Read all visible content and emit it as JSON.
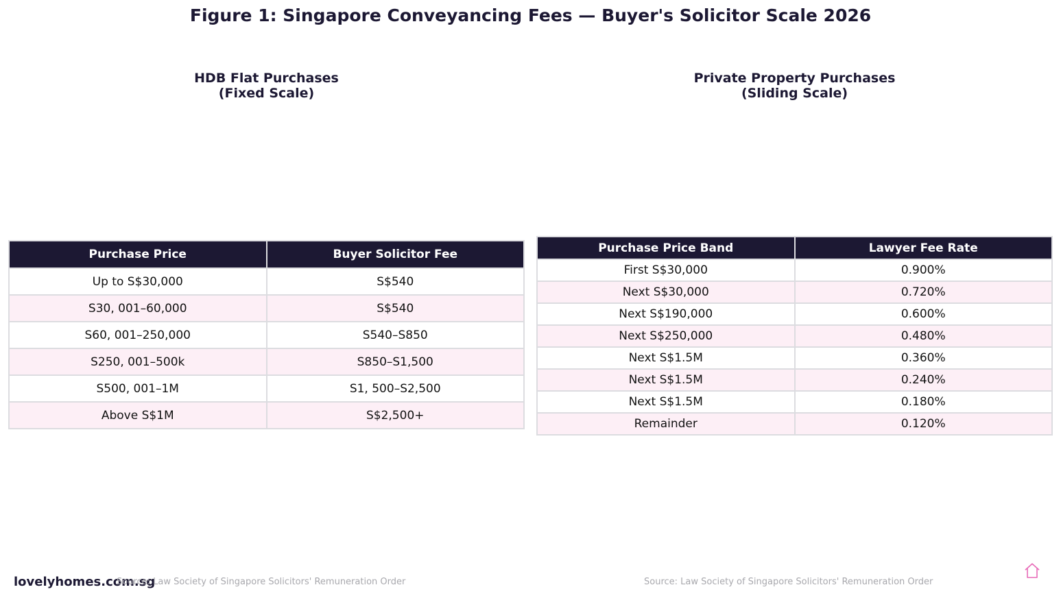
{
  "figure_title": "Figure 1: Singapore Conveyancing Fees — Buyer's Solicitor Scale 2026",
  "chart_data": [
    {
      "type": "table",
      "title_lines": [
        "HDB Flat Purchases",
        "(Fixed Scale)"
      ],
      "columns": [
        "Purchase Price",
        "Buyer Solicitor Fee"
      ],
      "rows": [
        [
          "Up to S$30,000",
          "S$540"
        ],
        [
          "S30, 001–60,000",
          "S$540"
        ],
        [
          "S60, 001–250,000",
          "S540–S850"
        ],
        [
          "S250, 001–500k",
          "S850–S1,500"
        ],
        [
          "S500, 001–1M",
          "S1, 500–S2,500"
        ],
        [
          "Above S$1M",
          "S$2,500+"
        ]
      ],
      "source": "Source: Law Society of Singapore Solicitors' Remuneration Order"
    },
    {
      "type": "table",
      "title_lines": [
        "Private Property Purchases",
        "(Sliding Scale)"
      ],
      "columns": [
        "Purchase Price Band",
        "Lawyer Fee Rate"
      ],
      "rows": [
        [
          "First S$30,000",
          "0.900%"
        ],
        [
          "Next S$30,000",
          "0.720%"
        ],
        [
          "Next S$190,000",
          "0.600%"
        ],
        [
          "Next S$250,000",
          "0.480%"
        ],
        [
          "Next S$1.5M",
          "0.360%"
        ],
        [
          "Next S$1.5M",
          "0.240%"
        ],
        [
          "Next S$1.5M",
          "0.180%"
        ],
        [
          "Remainder",
          "0.120%"
        ]
      ],
      "source": "Source: Law Society of Singapore Solicitors' Remuneration Order"
    }
  ],
  "footer": {
    "brand": "lovelyhomes.com.sg",
    "icon": "home-icon"
  },
  "colors": {
    "header_bg": "#1c1833",
    "alt_row_bg": "#fdeff6",
    "border": "#dcdce0",
    "icon_accent": "#e86bb8"
  }
}
